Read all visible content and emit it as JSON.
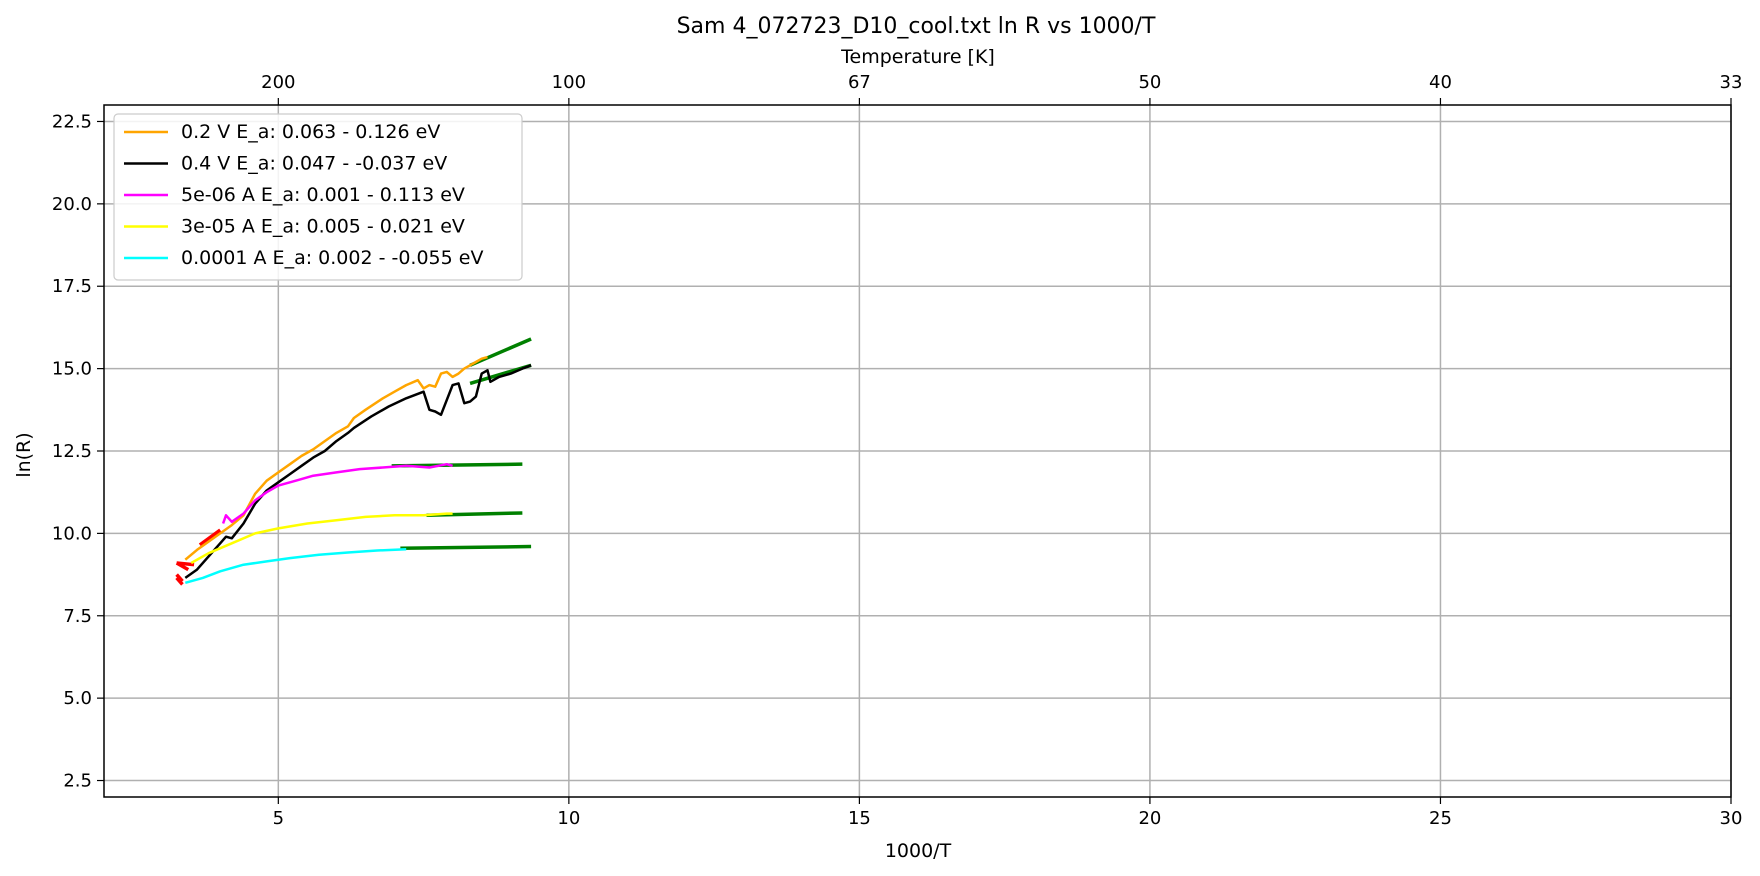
{
  "chart_data": {
    "type": "line",
    "title": "Sam 4_072723_D10_cool.txt ln R vs 1000/T",
    "xlabel": "1000/T",
    "ylabel": "ln(R)",
    "top_xlabel": "Temperature [K]",
    "xlim": [
      2.0,
      30.0
    ],
    "ylim": [
      2.0,
      23.0
    ],
    "x_ticks": [
      5,
      10,
      15,
      20,
      25,
      30
    ],
    "y_ticks": [
      2.5,
      5.0,
      7.5,
      10.0,
      12.5,
      15.0,
      17.5,
      20.0,
      22.5
    ],
    "y_tick_labels": [
      "2.5",
      "5.0",
      "7.5",
      "10.0",
      "12.5",
      "15.0",
      "17.5",
      "20.0",
      "22.5"
    ],
    "top_ticks": [
      {
        "x": 5,
        "label": "200"
      },
      {
        "x": 10,
        "label": "100"
      },
      {
        "x": 15,
        "label": "67"
      },
      {
        "x": 20,
        "label": "50"
      },
      {
        "x": 25,
        "label": "40"
      },
      {
        "x": 30,
        "label": "33"
      }
    ],
    "grid": true,
    "legend_position": "top-left",
    "series": [
      {
        "name": "0.2 V  E_a: 0.063 - 0.126 eV",
        "color": "#ffa500",
        "x": [
          3.4,
          3.6,
          3.8,
          4.0,
          4.2,
          4.4,
          4.6,
          4.8,
          5.0,
          5.2,
          5.4,
          5.6,
          5.8,
          6.0,
          6.2,
          6.3,
          6.5,
          6.8,
          7.0,
          7.2,
          7.4,
          7.5,
          7.6,
          7.7,
          7.8,
          7.9,
          8.0,
          8.1,
          8.2,
          8.3,
          8.4,
          8.5,
          8.6
        ],
        "y": [
          9.2,
          9.5,
          9.75,
          10.0,
          10.25,
          10.55,
          11.2,
          11.6,
          11.85,
          12.1,
          12.35,
          12.55,
          12.8,
          13.05,
          13.25,
          13.5,
          13.75,
          14.1,
          14.3,
          14.5,
          14.65,
          14.4,
          14.5,
          14.45,
          14.85,
          14.9,
          14.75,
          14.85,
          15.0,
          15.1,
          15.2,
          15.3,
          15.35
        ]
      },
      {
        "name": "0.4 V  E_a: 0.047 - -0.037 eV",
        "color": "#000000",
        "x": [
          3.4,
          3.6,
          3.8,
          4.0,
          4.1,
          4.2,
          4.4,
          4.6,
          4.8,
          5.0,
          5.2,
          5.4,
          5.6,
          5.8,
          6.0,
          6.2,
          6.3,
          6.6,
          6.9,
          7.2,
          7.5,
          7.6,
          7.7,
          7.8,
          8.0,
          8.1,
          8.2,
          8.3,
          8.4,
          8.5,
          8.6,
          8.65,
          8.8,
          9.0,
          9.2,
          9.35
        ],
        "y": [
          8.65,
          8.9,
          9.3,
          9.7,
          9.9,
          9.85,
          10.3,
          10.9,
          11.3,
          11.55,
          11.8,
          12.05,
          12.3,
          12.5,
          12.8,
          13.05,
          13.2,
          13.55,
          13.85,
          14.1,
          14.3,
          13.75,
          13.7,
          13.6,
          14.5,
          14.55,
          13.95,
          14.0,
          14.15,
          14.85,
          14.95,
          14.6,
          14.75,
          14.85,
          15.0,
          15.1
        ]
      },
      {
        "name": "5e-06 A E_a: 0.001 - 0.113 eV",
        "color": "#ff00ff",
        "x": [
          4.05,
          4.1,
          4.2,
          4.4,
          4.6,
          4.8,
          5.0,
          5.3,
          5.6,
          6.0,
          6.4,
          6.8,
          7.2,
          7.6,
          7.9,
          8.0
        ],
        "y": [
          10.3,
          10.55,
          10.35,
          10.6,
          11.0,
          11.25,
          11.45,
          11.6,
          11.75,
          11.85,
          11.95,
          12.0,
          12.05,
          12.0,
          12.1,
          12.05
        ]
      },
      {
        "name": "3e-05 A E_a: 0.005 - 0.021 eV",
        "color": "#ffff00",
        "x": [
          3.5,
          3.8,
          4.2,
          4.6,
          5.0,
          5.5,
          6.0,
          6.5,
          7.0,
          7.5,
          7.9,
          8.0
        ],
        "y": [
          9.1,
          9.4,
          9.7,
          10.0,
          10.15,
          10.3,
          10.4,
          10.5,
          10.55,
          10.55,
          10.6,
          10.6
        ]
      },
      {
        "name": "0.0001 A E_a: 0.002 - -0.055 eV",
        "color": "#00ffff",
        "x": [
          3.4,
          3.7,
          4.0,
          4.4,
          4.8,
          5.2,
          5.7,
          6.2,
          6.7,
          7.2
        ],
        "y": [
          8.5,
          8.65,
          8.85,
          9.05,
          9.15,
          9.25,
          9.35,
          9.42,
          9.48,
          9.52
        ]
      }
    ],
    "fit_lines": [
      {
        "color": "#ff0000",
        "x": [
          3.25,
          3.35
        ],
        "y": [
          8.75,
          8.55
        ]
      },
      {
        "color": "#ff0000",
        "x": [
          3.25,
          3.35
        ],
        "y": [
          8.65,
          8.45
        ]
      },
      {
        "color": "#ff0000",
        "x": [
          3.25,
          3.55
        ],
        "y": [
          9.1,
          9.05
        ]
      },
      {
        "color": "#ff0000",
        "x": [
          3.25,
          3.45
        ],
        "y": [
          9.1,
          8.9
        ]
      },
      {
        "color": "#ff0000",
        "x": [
          3.65,
          4.0
        ],
        "y": [
          9.65,
          10.1
        ]
      },
      {
        "color": "#008000",
        "x": [
          8.3,
          9.35
        ],
        "y": [
          15.1,
          15.9
        ]
      },
      {
        "color": "#008000",
        "x": [
          8.3,
          9.35
        ],
        "y": [
          14.55,
          15.1
        ]
      },
      {
        "color": "#008000",
        "x": [
          6.95,
          9.2
        ],
        "y": [
          12.05,
          12.1
        ]
      },
      {
        "color": "#008000",
        "x": [
          7.55,
          9.2
        ],
        "y": [
          10.55,
          10.62
        ]
      },
      {
        "color": "#008000",
        "x": [
          7.1,
          9.35
        ],
        "y": [
          9.55,
          9.6
        ]
      }
    ]
  }
}
